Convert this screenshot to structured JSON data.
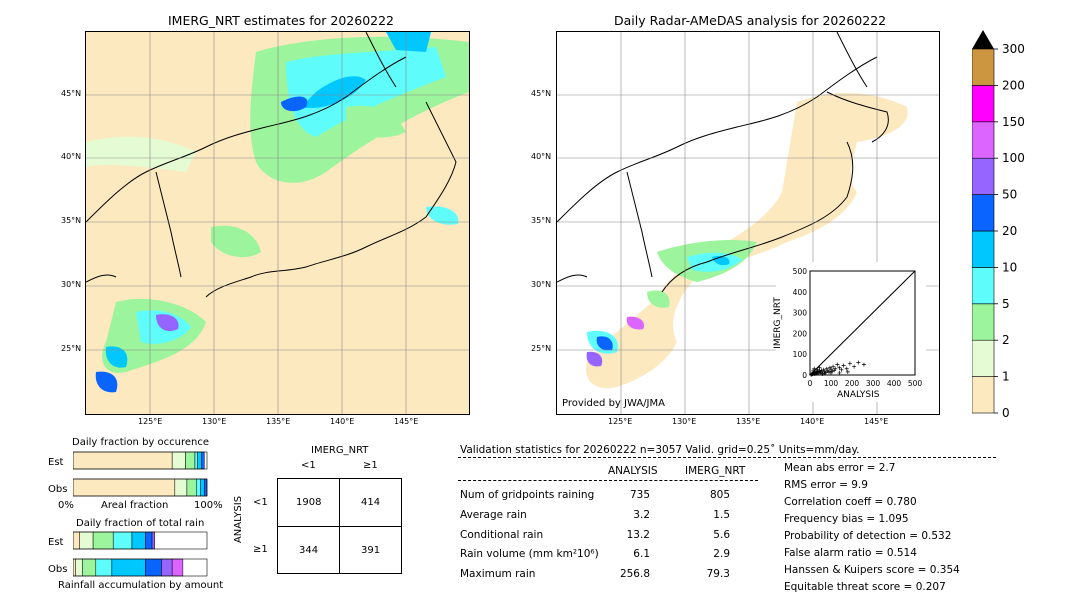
{
  "left_map": {
    "title": "IMERG_NRT estimates for 20260222",
    "lat_labels": [
      "45°N",
      "40°N",
      "35°N",
      "30°N",
      "25°N"
    ],
    "lon_labels": [
      "125°E",
      "130°E",
      "135°E",
      "140°E",
      "145°E"
    ]
  },
  "right_map": {
    "title": "Daily Radar-AMeDAS analysis for 20260222",
    "lat_labels": [
      "45°N",
      "40°N",
      "35°N",
      "30°N",
      "25°N"
    ],
    "lon_labels": [
      "125°E",
      "130°E",
      "135°E",
      "140°E",
      "145°E"
    ],
    "credit": "Provided by JWA/JMA"
  },
  "colorbar": {
    "labels": [
      "0",
      "1",
      "2",
      "5",
      "10",
      "20",
      "50",
      "100",
      "150",
      "200",
      "300"
    ],
    "colors": [
      "#fde9c0",
      "#e4fbd4",
      "#9cf59c",
      "#5ffcfc",
      "#00c8ff",
      "#0a64ff",
      "#9664ff",
      "#dc64ff",
      "#ff00ff",
      "#cc9640"
    ],
    "extend_color": "#000000"
  },
  "chart_data": [
    {
      "type": "scatter",
      "title": "",
      "xlabel": "ANALYSIS",
      "ylabel": "IMERG_NRT",
      "xlim": [
        0,
        500
      ],
      "ylim": [
        0,
        500
      ],
      "ticks": [
        "0",
        "100",
        "200",
        "300",
        "400",
        "500"
      ],
      "diagonal": true,
      "points": [
        [
          5,
          2
        ],
        [
          8,
          3
        ],
        [
          10,
          5
        ],
        [
          12,
          4
        ],
        [
          15,
          6
        ],
        [
          18,
          8
        ],
        [
          20,
          10
        ],
        [
          22,
          5
        ],
        [
          25,
          12
        ],
        [
          28,
          6
        ],
        [
          30,
          15
        ],
        [
          32,
          8
        ],
        [
          35,
          10
        ],
        [
          38,
          18
        ],
        [
          40,
          12
        ],
        [
          45,
          20
        ],
        [
          48,
          8
        ],
        [
          50,
          15
        ],
        [
          55,
          22
        ],
        [
          60,
          10
        ],
        [
          65,
          25
        ],
        [
          70,
          18
        ],
        [
          75,
          12
        ],
        [
          80,
          30
        ],
        [
          85,
          20
        ],
        [
          90,
          15
        ],
        [
          95,
          35
        ],
        [
          100,
          28
        ],
        [
          105,
          18
        ],
        [
          110,
          40
        ],
        [
          115,
          22
        ],
        [
          120,
          30
        ],
        [
          130,
          50
        ],
        [
          140,
          35
        ],
        [
          150,
          25
        ],
        [
          160,
          45
        ],
        [
          175,
          30
        ],
        [
          190,
          55
        ],
        [
          210,
          40
        ],
        [
          230,
          60
        ],
        [
          256.8,
          50
        ],
        [
          20,
          30
        ],
        [
          35,
          25
        ],
        [
          60,
          5
        ],
        [
          15,
          20
        ],
        [
          45,
          35
        ],
        [
          70,
          8
        ],
        [
          100,
          10
        ],
        [
          140,
          10
        ],
        [
          180,
          15
        ]
      ]
    },
    {
      "type": "bar",
      "title": "Daily fraction by occurence",
      "categories": [
        "Est",
        "Obs"
      ],
      "xlabel": "Areal fraction",
      "x_min_label": "0%",
      "x_max_label": "100%",
      "stacked_fractions": [
        [
          0.74,
          0.1,
          0.07,
          0.02,
          0.03,
          0.02
        ],
        [
          0.76,
          0.09,
          0.07,
          0.03,
          0.03,
          0.02
        ]
      ]
    },
    {
      "type": "bar",
      "title": "Daily fraction of total rain",
      "categories": [
        "Est",
        "Obs"
      ],
      "xlabel": "Rainfall accumulation by amount",
      "stacked_fractions": [
        [
          0.05,
          0.1,
          0.15,
          0.14,
          0.1,
          0.05,
          0.02
        ],
        [
          0.02,
          0.05,
          0.1,
          0.12,
          0.25,
          0.12,
          0.08,
          0.08
        ]
      ]
    }
  ],
  "contingency": {
    "header": "IMERG_NRT",
    "col_labels": [
      "<1",
      "≥1"
    ],
    "row_header": "ANALYSIS",
    "row_labels": [
      "<1",
      "≥1"
    ],
    "cells": [
      [
        "1908",
        "414"
      ],
      [
        "344",
        "391"
      ]
    ]
  },
  "validation": {
    "header": "Validation statistics for 20260222  n=3057 Valid. grid=0.25˚ Units=mm/day.",
    "col1": "ANALYSIS",
    "col2": "IMERG_NRT",
    "rows": [
      {
        "label": "Num of gridpoints raining",
        "a": "735",
        "b": "805"
      },
      {
        "label": "Average rain",
        "a": "3.2",
        "b": "1.5"
      },
      {
        "label": "Conditional rain",
        "a": "13.2",
        "b": "5.6"
      },
      {
        "label": "Rain volume (mm km²10⁶)",
        "a": "6.1",
        "b": "2.9"
      },
      {
        "label": "Maximum rain",
        "a": "256.8",
        "b": "79.3"
      }
    ],
    "scores": [
      "Mean abs error =    2.7",
      "RMS error =    9.9",
      "Correlation coeff =  0.780",
      "Frequency bias =  1.095",
      "Probability of detection =  0.532",
      "False alarm ratio =  0.514",
      "Hanssen & Kuipers score =  0.354",
      "Equitable threat score =  0.207"
    ]
  }
}
